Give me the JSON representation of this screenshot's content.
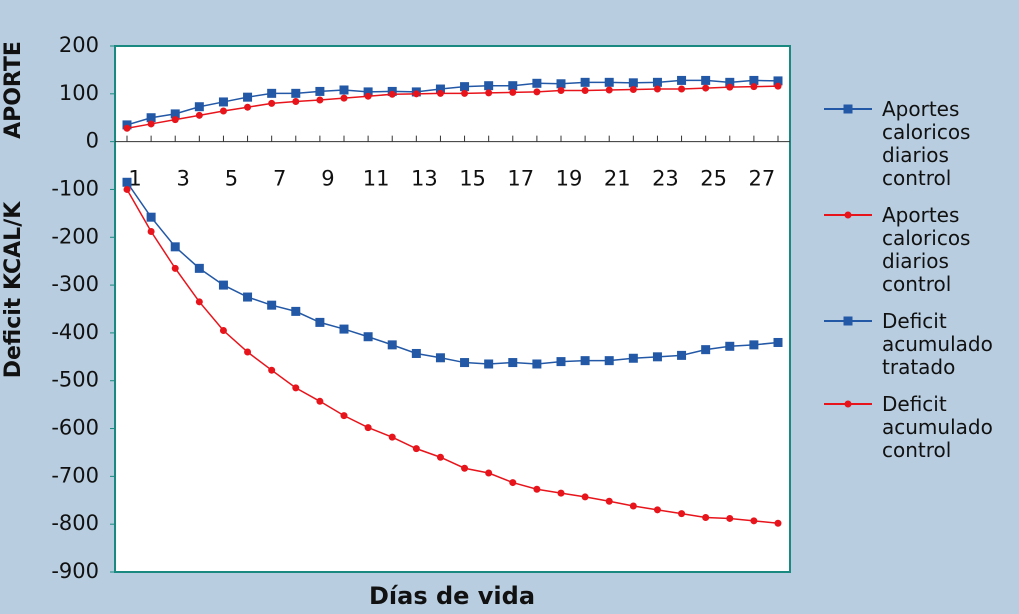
{
  "chart_data": {
    "type": "line",
    "xlabel": "Días de vida",
    "ylabel": [
      "Deficit KCAL/K",
      "APORTE"
    ],
    "categories": [
      "1",
      null,
      "3",
      null,
      "5",
      null,
      "7",
      null,
      "9",
      null,
      "11",
      null,
      "13",
      null,
      "15",
      null,
      "17",
      null,
      "19",
      null,
      "21",
      null,
      "23",
      null,
      "25",
      null,
      "27",
      null
    ],
    "ylim": [
      -900,
      200
    ],
    "yticks": [
      -900,
      -800,
      -700,
      -600,
      -500,
      -400,
      -300,
      -200,
      -100,
      0,
      100,
      200
    ],
    "grid": false,
    "legend": "right",
    "series": [
      {
        "name": "Aportes caloricos diarios control",
        "color": "#2358a6",
        "marker": "square",
        "values": [
          35,
          50,
          58,
          73,
          83,
          93,
          101,
          101,
          105,
          108,
          104,
          105,
          104,
          110,
          115,
          117,
          117,
          122,
          121,
          124,
          124,
          123,
          124,
          128,
          128,
          124,
          128,
          127
        ]
      },
      {
        "name": "Aportes caloricos diarios control",
        "color": "#e8141b",
        "marker": "circle",
        "values": [
          28,
          37,
          46,
          55,
          64,
          72,
          80,
          84,
          87,
          91,
          95,
          99,
          100,
          101,
          101,
          102,
          103,
          104,
          107,
          107,
          108,
          109,
          110,
          110,
          112,
          114,
          115,
          116
        ]
      },
      {
        "name": "Deficit acumulado tratado",
        "color": "#2358a6",
        "marker": "square",
        "values": [
          -85,
          -158,
          -220,
          -265,
          -300,
          -325,
          -342,
          -355,
          -378,
          -392,
          -408,
          -425,
          -443,
          -452,
          -462,
          -465,
          -462,
          -465,
          -460,
          -458,
          -458,
          -453,
          -450,
          -447,
          -435,
          -428,
          -425,
          -420
        ]
      },
      {
        "name": "Deficit acumulado control",
        "color": "#e8141b",
        "marker": "circle",
        "values": [
          -100,
          -188,
          -265,
          -335,
          -395,
          -440,
          -478,
          -515,
          -543,
          -573,
          -598,
          -618,
          -642,
          -660,
          -683,
          -693,
          -713,
          -727,
          -735,
          -743,
          -752,
          -762,
          -770,
          -778,
          -786,
          -788,
          -793,
          -798
        ]
      }
    ]
  }
}
